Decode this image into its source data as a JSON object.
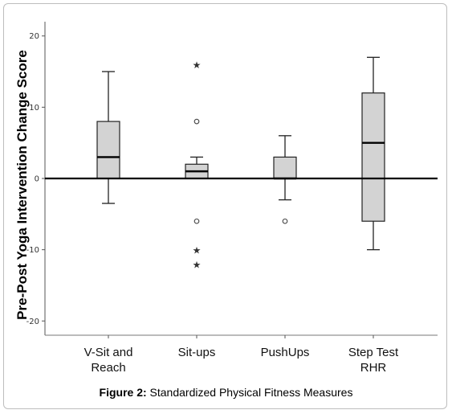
{
  "caption": {
    "label": "Figure 2:",
    "text": " Standardized Physical Fitness Measures"
  },
  "chart_data": {
    "type": "boxplot",
    "title": "",
    "xlabel": "",
    "ylabel": "Pre-Post Yoga Intervention Change Score",
    "ylim": [
      -22,
      22
    ],
    "yticks": [
      20,
      10,
      0,
      -10,
      -20
    ],
    "grid": false,
    "reference_line": 0,
    "box_color": "#d3d3d3",
    "categories": [
      [
        "V-Sit and",
        "Reach"
      ],
      [
        "Sit-ups"
      ],
      [
        "PushUps"
      ],
      [
        "Step Test",
        "RHR"
      ]
    ],
    "boxes": [
      {
        "whisker_low": -3.5,
        "q1": 0,
        "median": 3,
        "q3": 8,
        "whisker_high": 15,
        "outliers": [],
        "extremes": []
      },
      {
        "whisker_low": 0,
        "q1": 0,
        "median": 1,
        "q3": 2,
        "whisker_high": 3,
        "outliers": [
          8,
          -6
        ],
        "extremes": [
          16,
          -10,
          -12
        ]
      },
      {
        "whisker_low": -3,
        "q1": 0,
        "median": 0,
        "q3": 3,
        "whisker_high": 6,
        "outliers": [
          -6
        ],
        "extremes": []
      },
      {
        "whisker_low": -10,
        "q1": -6,
        "median": 5,
        "q3": 12,
        "whisker_high": 17,
        "outliers": [],
        "extremes": []
      }
    ]
  }
}
